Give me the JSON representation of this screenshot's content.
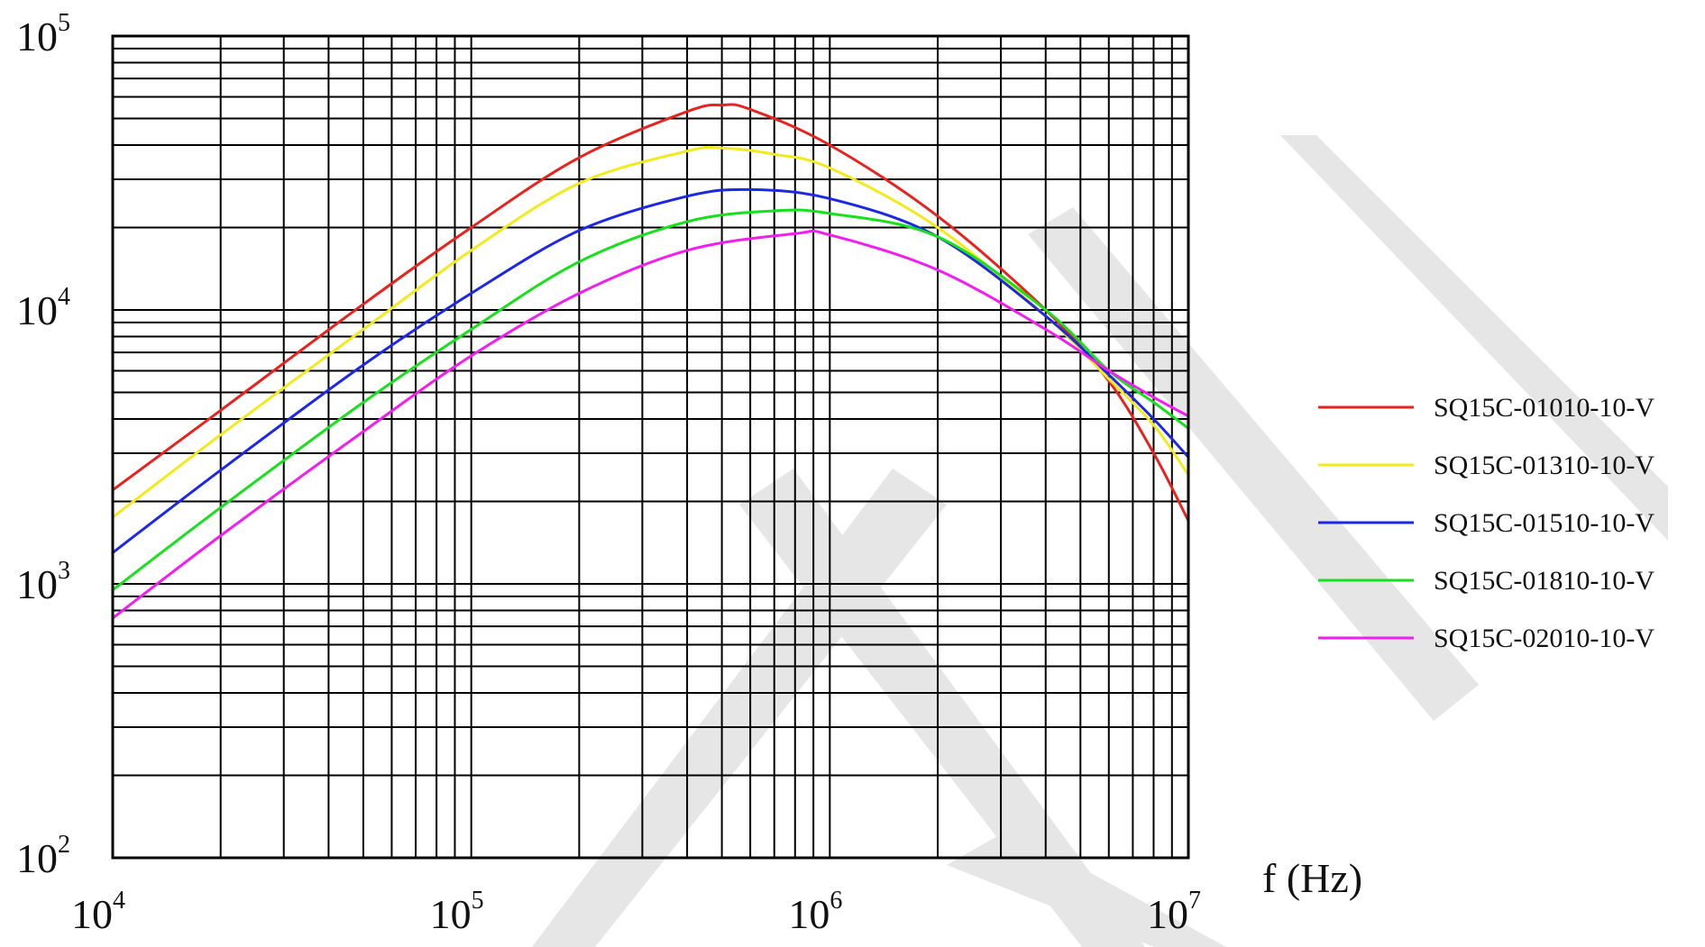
{
  "chart_data": {
    "type": "line",
    "title": "",
    "xlabel": "f (Hz)",
    "ylabel": "",
    "x_scale": "log",
    "y_scale": "log",
    "xlim": [
      10000,
      10000000
    ],
    "ylim": [
      100,
      100000
    ],
    "grid": true,
    "legend_position": "right",
    "x_ticks": [
      {
        "value": 10000,
        "base": "10",
        "exp": "4"
      },
      {
        "value": 100000,
        "base": "10",
        "exp": "5"
      },
      {
        "value": 1000000,
        "base": "10",
        "exp": "6"
      },
      {
        "value": 10000000,
        "base": "10",
        "exp": "7"
      }
    ],
    "y_ticks": [
      {
        "value": 100,
        "base": "10",
        "exp": "2"
      },
      {
        "value": 1000,
        "base": "10",
        "exp": "3"
      },
      {
        "value": 10000,
        "base": "10",
        "exp": "4"
      },
      {
        "value": 100000,
        "base": "10",
        "exp": "5"
      }
    ],
    "series": [
      {
        "name": "SQ15C-01010-10-V",
        "color": "#e8231e",
        "points": [
          [
            10000,
            2200
          ],
          [
            20000,
            4300
          ],
          [
            50000,
            10500
          ],
          [
            100000,
            20000
          ],
          [
            200000,
            36000
          ],
          [
            400000,
            53000
          ],
          [
            500000,
            56000
          ],
          [
            600000,
            54000
          ],
          [
            1000000,
            40000
          ],
          [
            2000000,
            22000
          ],
          [
            4000000,
            10000
          ],
          [
            6000000,
            5500
          ],
          [
            8000000,
            3000
          ],
          [
            10000000,
            1700
          ]
        ]
      },
      {
        "name": "SQ15C-01310-10-V",
        "color": "#f2ea1c",
        "points": [
          [
            10000,
            1750
          ],
          [
            20000,
            3500
          ],
          [
            50000,
            8500
          ],
          [
            100000,
            16500
          ],
          [
            200000,
            29000
          ],
          [
            400000,
            38000
          ],
          [
            500000,
            39000
          ],
          [
            700000,
            37000
          ],
          [
            1000000,
            33000
          ],
          [
            2000000,
            20000
          ],
          [
            4000000,
            9500
          ],
          [
            6000000,
            5600
          ],
          [
            8000000,
            3800
          ],
          [
            10000000,
            2500
          ]
        ]
      },
      {
        "name": "SQ15C-01510-10-V",
        "color": "#1c28e6",
        "points": [
          [
            10000,
            1300
          ],
          [
            20000,
            2600
          ],
          [
            50000,
            6300
          ],
          [
            100000,
            11500
          ],
          [
            200000,
            19500
          ],
          [
            400000,
            26000
          ],
          [
            600000,
            27500
          ],
          [
            1000000,
            25500
          ],
          [
            2000000,
            18500
          ],
          [
            4000000,
            9500
          ],
          [
            6000000,
            5800
          ],
          [
            8000000,
            4000
          ],
          [
            10000000,
            2900
          ]
        ]
      },
      {
        "name": "SQ15C-01810-10-V",
        "color": "#18e01c",
        "points": [
          [
            10000,
            950
          ],
          [
            20000,
            1900
          ],
          [
            50000,
            4600
          ],
          [
            100000,
            8500
          ],
          [
            200000,
            15000
          ],
          [
            400000,
            21000
          ],
          [
            700000,
            23000
          ],
          [
            1000000,
            22500
          ],
          [
            2000000,
            18500
          ],
          [
            4000000,
            10000
          ],
          [
            6000000,
            6000
          ],
          [
            8000000,
            4600
          ],
          [
            10000000,
            3700
          ]
        ]
      },
      {
        "name": "SQ15C-02010-10-V",
        "color": "#f21ef0",
        "points": [
          [
            10000,
            750
          ],
          [
            20000,
            1500
          ],
          [
            50000,
            3600
          ],
          [
            100000,
            6800
          ],
          [
            200000,
            11500
          ],
          [
            400000,
            16500
          ],
          [
            800000,
            19000
          ],
          [
            1000000,
            18800
          ],
          [
            2000000,
            14000
          ],
          [
            4000000,
            8500
          ],
          [
            6000000,
            6000
          ],
          [
            8000000,
            4800
          ],
          [
            10000000,
            4100
          ]
        ]
      }
    ]
  }
}
